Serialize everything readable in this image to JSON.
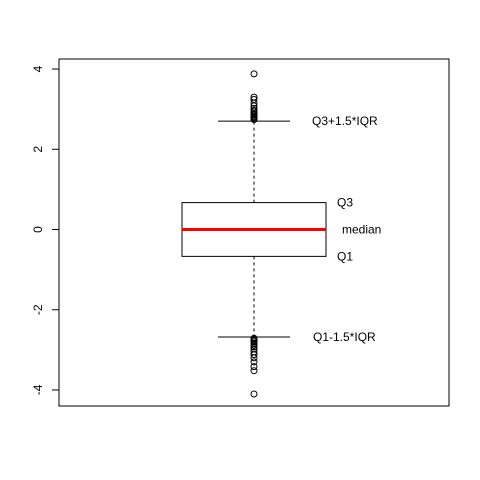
{
  "chart_data": {
    "type": "box",
    "ylim": [
      -4.4,
      4.25
    ],
    "yticks": [
      -4,
      -2,
      0,
      2,
      4
    ],
    "ytick_labels": [
      "-4",
      "-2",
      "0",
      "2",
      "4"
    ],
    "box": {
      "q1": -0.67,
      "median": 0.0,
      "q3": 0.67,
      "lower_whisker": -2.68,
      "upper_whisker": 2.7
    },
    "outliers": [
      3.88,
      3.3,
      3.24,
      3.15,
      3.08,
      3.02,
      2.97,
      2.93,
      2.89,
      2.86,
      2.83,
      2.8,
      2.77,
      2.74,
      -2.71,
      -2.74,
      -2.77,
      -2.8,
      -2.84,
      -2.88,
      -2.93,
      -2.98,
      -3.05,
      -3.12,
      -3.2,
      -3.3,
      -3.42,
      -3.52,
      -4.1
    ],
    "annotations": {
      "upper_whisker": "Q3+1.5*IQR",
      "q3": "Q3",
      "median": "median",
      "q1": "Q1",
      "lower_whisker": "Q1-1.5*IQR"
    },
    "colors": {
      "median": "#ff0000",
      "box": "#000000",
      "points": "#000000"
    },
    "grid": false
  }
}
